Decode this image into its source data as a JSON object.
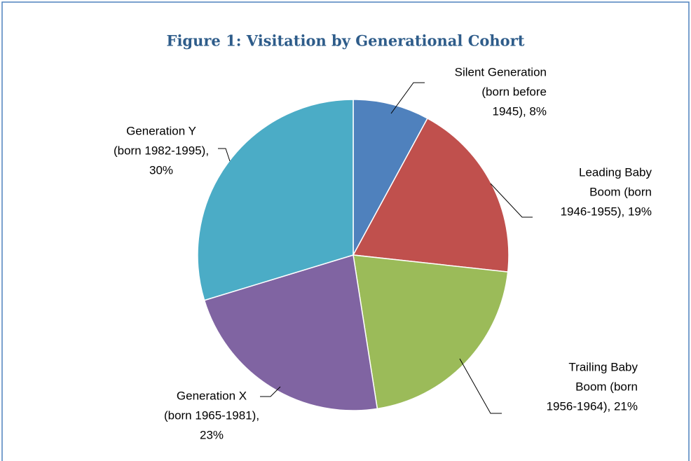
{
  "chart_data": {
    "type": "pie",
    "title": "Figure 1: Visitation by Generational Cohort",
    "values": [
      8,
      19,
      21,
      23,
      30
    ],
    "value_labels": [
      [
        "Silent Generation",
        "(born before",
        "1945), 8%"
      ],
      [
        "Leading Baby",
        "Boom (born",
        "1946-1955), 19%"
      ],
      [
        "Trailing Baby",
        "Boom (born",
        "1956-1964), 21%"
      ],
      [
        "Generation X",
        "(born 1965-1981),",
        "23%"
      ],
      [
        "Generation Y",
        "(born 1982-1995),",
        "30%"
      ]
    ],
    "colors": [
      "#4f81bd",
      "#c0504d",
      "#9bbb59",
      "#8064a2",
      "#4bacc6"
    ]
  }
}
